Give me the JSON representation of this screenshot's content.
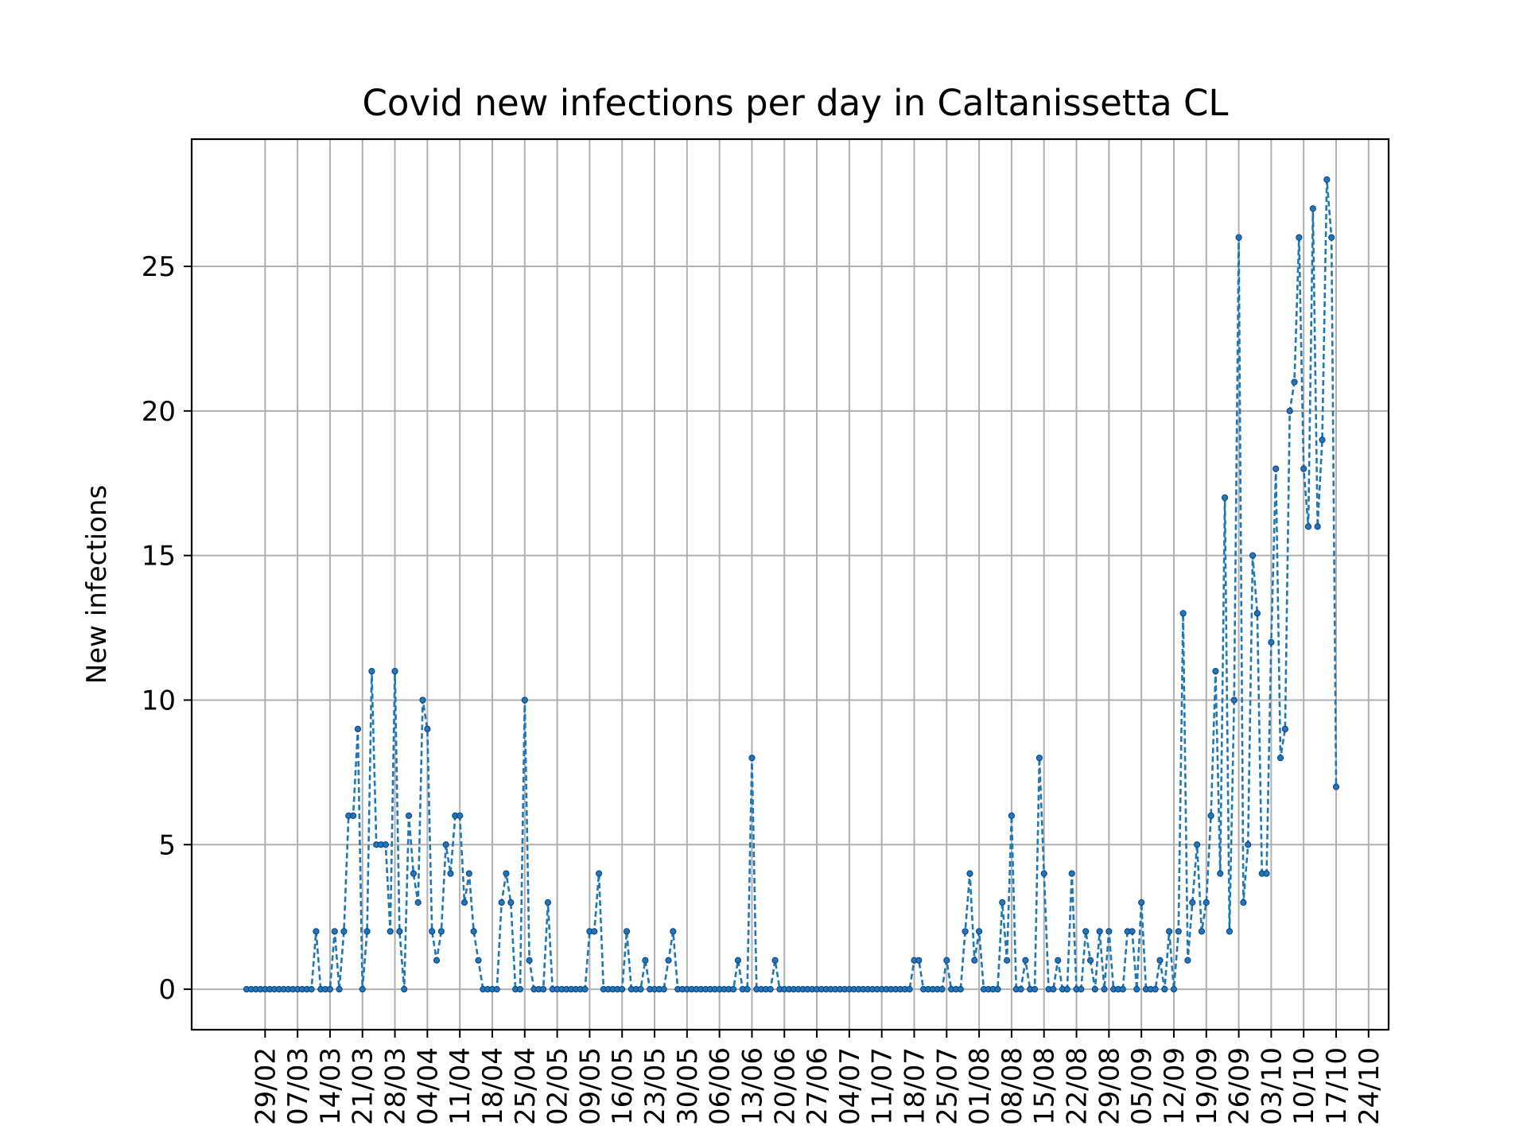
{
  "chart_data": {
    "type": "line",
    "title": "Covid new infections per day in Caltanissetta CL",
    "xlabel": "",
    "ylabel": "New infections",
    "ylim": [
      -1.4,
      29.4
    ],
    "yticks": [
      0,
      5,
      10,
      15,
      20,
      25
    ],
    "grid": true,
    "line_style": "dashed",
    "marker": "dot",
    "xticks": [
      "29/02",
      "07/03",
      "14/03",
      "21/03",
      "28/03",
      "04/04",
      "11/04",
      "18/04",
      "25/04",
      "02/05",
      "09/05",
      "16/05",
      "23/05",
      "30/05",
      "06/06",
      "13/06",
      "20/06",
      "27/06",
      "04/07",
      "11/07",
      "18/07",
      "25/07",
      "01/08",
      "08/08",
      "15/08",
      "22/08",
      "29/08",
      "05/09",
      "12/09",
      "19/09",
      "26/09",
      "03/10",
      "10/10",
      "17/10",
      "24/10"
    ],
    "series": [
      {
        "start_date": "2020-02-25",
        "color": "#1f77b4",
        "values": [
          0,
          0,
          0,
          0,
          0,
          0,
          0,
          0,
          0,
          0,
          0,
          0,
          0,
          0,
          0,
          2,
          0,
          0,
          0,
          2,
          0,
          2,
          6,
          6,
          9,
          0,
          2,
          11,
          5,
          5,
          5,
          2,
          11,
          2,
          0,
          6,
          4,
          3,
          10,
          9,
          2,
          1,
          2,
          5,
          4,
          6,
          6,
          3,
          4,
          2,
          1,
          0,
          0,
          0,
          0,
          3,
          4,
          3,
          0,
          0,
          10,
          1,
          0,
          0,
          0,
          3,
          0,
          0,
          0,
          0,
          0,
          0,
          0,
          0,
          2,
          2,
          4,
          0,
          0,
          0,
          0,
          0,
          2,
          0,
          0,
          0,
          1,
          0,
          0,
          0,
          0,
          1,
          2,
          0,
          0,
          0,
          0,
          0,
          0,
          0,
          0,
          0,
          0,
          0,
          0,
          0,
          1,
          0,
          0,
          8,
          0,
          0,
          0,
          0,
          1,
          0,
          0,
          0,
          0,
          0,
          0,
          0,
          0,
          0,
          0,
          0,
          0,
          0,
          0,
          0,
          0,
          0,
          0,
          0,
          0,
          0,
          0,
          0,
          0,
          0,
          0,
          0,
          0,
          0,
          1,
          1,
          0,
          0,
          0,
          0,
          0,
          1,
          0,
          0,
          0,
          2,
          4,
          1,
          2,
          0,
          0,
          0,
          0,
          3,
          1,
          6,
          0,
          0,
          1,
          0,
          0,
          8,
          4,
          0,
          0,
          1,
          0,
          0,
          4,
          0,
          0,
          2,
          1,
          0,
          2,
          0,
          2,
          0,
          0,
          0,
          2,
          2,
          0,
          3,
          0,
          0,
          0,
          1,
          0,
          2,
          0,
          2,
          13,
          1,
          3,
          5,
          2,
          3,
          6,
          11,
          4,
          17,
          2,
          10,
          26,
          3,
          5,
          15,
          13,
          4,
          4,
          12,
          18,
          8,
          9,
          20,
          21,
          26,
          18,
          16,
          27,
          16,
          19,
          28,
          26,
          7
        ]
      }
    ]
  }
}
